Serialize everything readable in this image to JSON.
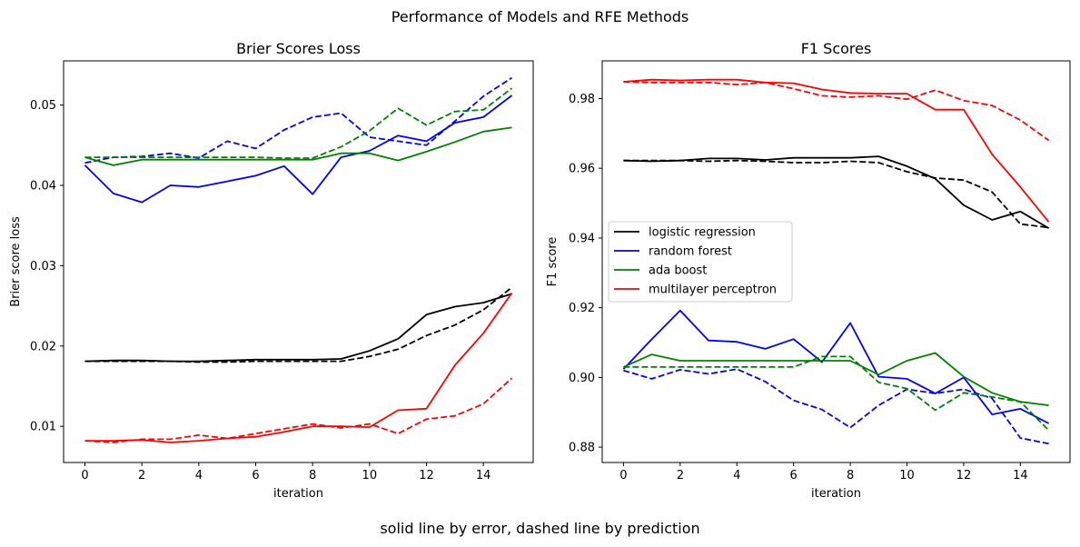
{
  "suptitle": "Performance of Models and RFE Methods",
  "footer": "solid line by error, dashed line by prediction",
  "chart_data": [
    {
      "type": "line",
      "title": "Brier Scores Loss",
      "xlabel": "iteration",
      "ylabel": "Brier score loss",
      "xlim": [
        -0.75,
        15.75
      ],
      "ylim": [
        0.0055,
        0.0555
      ],
      "xticks": [
        0,
        2,
        4,
        6,
        8,
        10,
        12,
        14
      ],
      "xtick_labels": [
        "0",
        "2",
        "4",
        "6",
        "8",
        "10",
        "12",
        "14"
      ],
      "yticks": [
        0.01,
        0.02,
        0.03,
        0.04,
        0.05
      ],
      "ytick_labels": [
        "0.01",
        "0.02",
        "0.03",
        "0.04",
        "0.05"
      ],
      "grid": false,
      "x": [
        0,
        1,
        2,
        3,
        4,
        5,
        6,
        7,
        8,
        9,
        10,
        11,
        12,
        13,
        14,
        15
      ],
      "series": [
        {
          "model": "logistic regression",
          "style": "solid",
          "color": "#000000",
          "values": [
            0.0181,
            0.0182,
            0.0182,
            0.0181,
            0.0181,
            0.0182,
            0.0183,
            0.0183,
            0.0183,
            0.0184,
            0.0194,
            0.0209,
            0.0239,
            0.0249,
            0.0254,
            0.0265
          ]
        },
        {
          "model": "logistic regression",
          "style": "dashed",
          "color": "#000000",
          "values": [
            0.0181,
            0.0181,
            0.0181,
            0.0181,
            0.018,
            0.018,
            0.0181,
            0.0181,
            0.0181,
            0.0181,
            0.0187,
            0.0196,
            0.0213,
            0.0226,
            0.0245,
            0.0273
          ]
        },
        {
          "model": "random forest",
          "style": "solid",
          "color": "#0000ff",
          "values": [
            0.0425,
            0.039,
            0.0379,
            0.04,
            0.0398,
            0.0405,
            0.0412,
            0.0424,
            0.0389,
            0.0435,
            0.0443,
            0.0462,
            0.0455,
            0.0478,
            0.0485,
            0.0512
          ]
        },
        {
          "model": "random forest",
          "style": "dashed",
          "color": "#0000ff",
          "values": [
            0.0428,
            0.0435,
            0.0436,
            0.044,
            0.0434,
            0.0455,
            0.0446,
            0.0469,
            0.0485,
            0.049,
            0.046,
            0.0455,
            0.045,
            0.048,
            0.0511,
            0.0534
          ]
        },
        {
          "model": "ada boost",
          "style": "solid",
          "color": "#008000",
          "values": [
            0.0435,
            0.0425,
            0.0432,
            0.0432,
            0.0432,
            0.0432,
            0.0432,
            0.0432,
            0.0432,
            0.044,
            0.044,
            0.0431,
            0.0442,
            0.0454,
            0.0467,
            0.0472
          ]
        },
        {
          "model": "ada boost",
          "style": "dashed",
          "color": "#008000",
          "values": [
            0.0435,
            0.0435,
            0.0435,
            0.0435,
            0.0435,
            0.0435,
            0.0435,
            0.0434,
            0.0434,
            0.0448,
            0.0468,
            0.0496,
            0.0475,
            0.0492,
            0.0494,
            0.0521
          ]
        },
        {
          "model": "multilayer perceptron",
          "style": "solid",
          "color": "#ff0000",
          "values": [
            0.0082,
            0.0082,
            0.0083,
            0.008,
            0.0082,
            0.0085,
            0.0087,
            0.0093,
            0.01,
            0.01,
            0.0099,
            0.012,
            0.0122,
            0.0176,
            0.0216,
            0.0266
          ]
        },
        {
          "model": "multilayer perceptron",
          "style": "dashed",
          "color": "#ff0000",
          "values": [
            0.0082,
            0.008,
            0.0084,
            0.0084,
            0.0089,
            0.0085,
            0.0091,
            0.0097,
            0.0103,
            0.0098,
            0.0103,
            0.0091,
            0.0109,
            0.0113,
            0.0128,
            0.016
          ]
        }
      ]
    },
    {
      "type": "line",
      "title": "F1 Scores",
      "xlabel": "iteration",
      "ylabel": "F1 score",
      "xlim": [
        -0.75,
        15.75
      ],
      "ylim": [
        0.8756,
        0.9908
      ],
      "xticks": [
        0,
        2,
        4,
        6,
        8,
        10,
        12,
        14
      ],
      "xtick_labels": [
        "0",
        "2",
        "4",
        "6",
        "8",
        "10",
        "12",
        "14"
      ],
      "yticks": [
        0.88,
        0.9,
        0.92,
        0.94,
        0.96,
        0.98
      ],
      "ytick_labels": [
        "0.88",
        "0.90",
        "0.92",
        "0.94",
        "0.96",
        "0.98"
      ],
      "grid": false,
      "legend_position": "center-left",
      "legend": [
        {
          "label": "logistic regression",
          "color": "#000000"
        },
        {
          "label": "random forest",
          "color": "#0000ff"
        },
        {
          "label": "ada boost",
          "color": "#008000"
        },
        {
          "label": "multilayer perceptron",
          "color": "#ff0000"
        }
      ],
      "x": [
        0,
        1,
        2,
        3,
        4,
        5,
        6,
        7,
        8,
        9,
        10,
        11,
        12,
        13,
        14,
        15
      ],
      "series": [
        {
          "model": "logistic regression",
          "style": "solid",
          "color": "#000000",
          "values": [
            0.9622,
            0.962,
            0.9622,
            0.9628,
            0.9628,
            0.9624,
            0.963,
            0.963,
            0.963,
            0.9634,
            0.9606,
            0.957,
            0.9494,
            0.9452,
            0.9476,
            0.9428
          ]
        },
        {
          "model": "logistic regression",
          "style": "dashed",
          "color": "#000000",
          "values": [
            0.9622,
            0.9622,
            0.9622,
            0.962,
            0.9622,
            0.962,
            0.9616,
            0.9616,
            0.962,
            0.9616,
            0.959,
            0.9572,
            0.9566,
            0.9532,
            0.944,
            0.943
          ]
        },
        {
          "model": "random forest",
          "style": "solid",
          "color": "#0000ff",
          "values": [
            0.9024,
            0.911,
            0.9192,
            0.9106,
            0.9102,
            0.9082,
            0.911,
            0.9044,
            0.9156,
            0.9002,
            0.8996,
            0.8954,
            0.9,
            0.8894,
            0.891,
            0.8868
          ]
        },
        {
          "model": "random forest",
          "style": "dashed",
          "color": "#0000ff",
          "values": [
            0.902,
            0.8996,
            0.9022,
            0.901,
            0.9024,
            0.8988,
            0.8934,
            0.8908,
            0.8856,
            0.892,
            0.8966,
            0.8954,
            0.8966,
            0.894,
            0.8826,
            0.881
          ]
        },
        {
          "model": "ada boost",
          "style": "solid",
          "color": "#008000",
          "values": [
            0.903,
            0.9066,
            0.9048,
            0.9048,
            0.9048,
            0.9048,
            0.9048,
            0.9048,
            0.9048,
            0.9008,
            0.9048,
            0.907,
            0.9002,
            0.8956,
            0.893,
            0.892
          ]
        },
        {
          "model": "ada boost",
          "style": "dashed",
          "color": "#008000",
          "values": [
            0.903,
            0.903,
            0.903,
            0.903,
            0.903,
            0.903,
            0.903,
            0.906,
            0.906,
            0.8986,
            0.8968,
            0.8906,
            0.8956,
            0.8944,
            0.893,
            0.8848
          ]
        },
        {
          "model": "multilayer perceptron",
          "style": "solid",
          "color": "#ff0000",
          "values": [
            0.9848,
            0.9854,
            0.9852,
            0.9854,
            0.9854,
            0.9846,
            0.9844,
            0.9826,
            0.9816,
            0.9814,
            0.9814,
            0.9768,
            0.9768,
            0.964,
            0.9546,
            0.9446
          ]
        },
        {
          "model": "multilayer perceptron",
          "style": "dashed",
          "color": "#ff0000",
          "values": [
            0.9848,
            0.9846,
            0.9846,
            0.9846,
            0.984,
            0.9846,
            0.9828,
            0.9808,
            0.9804,
            0.9808,
            0.9798,
            0.9824,
            0.9794,
            0.978,
            0.9738,
            0.968
          ]
        }
      ]
    }
  ]
}
